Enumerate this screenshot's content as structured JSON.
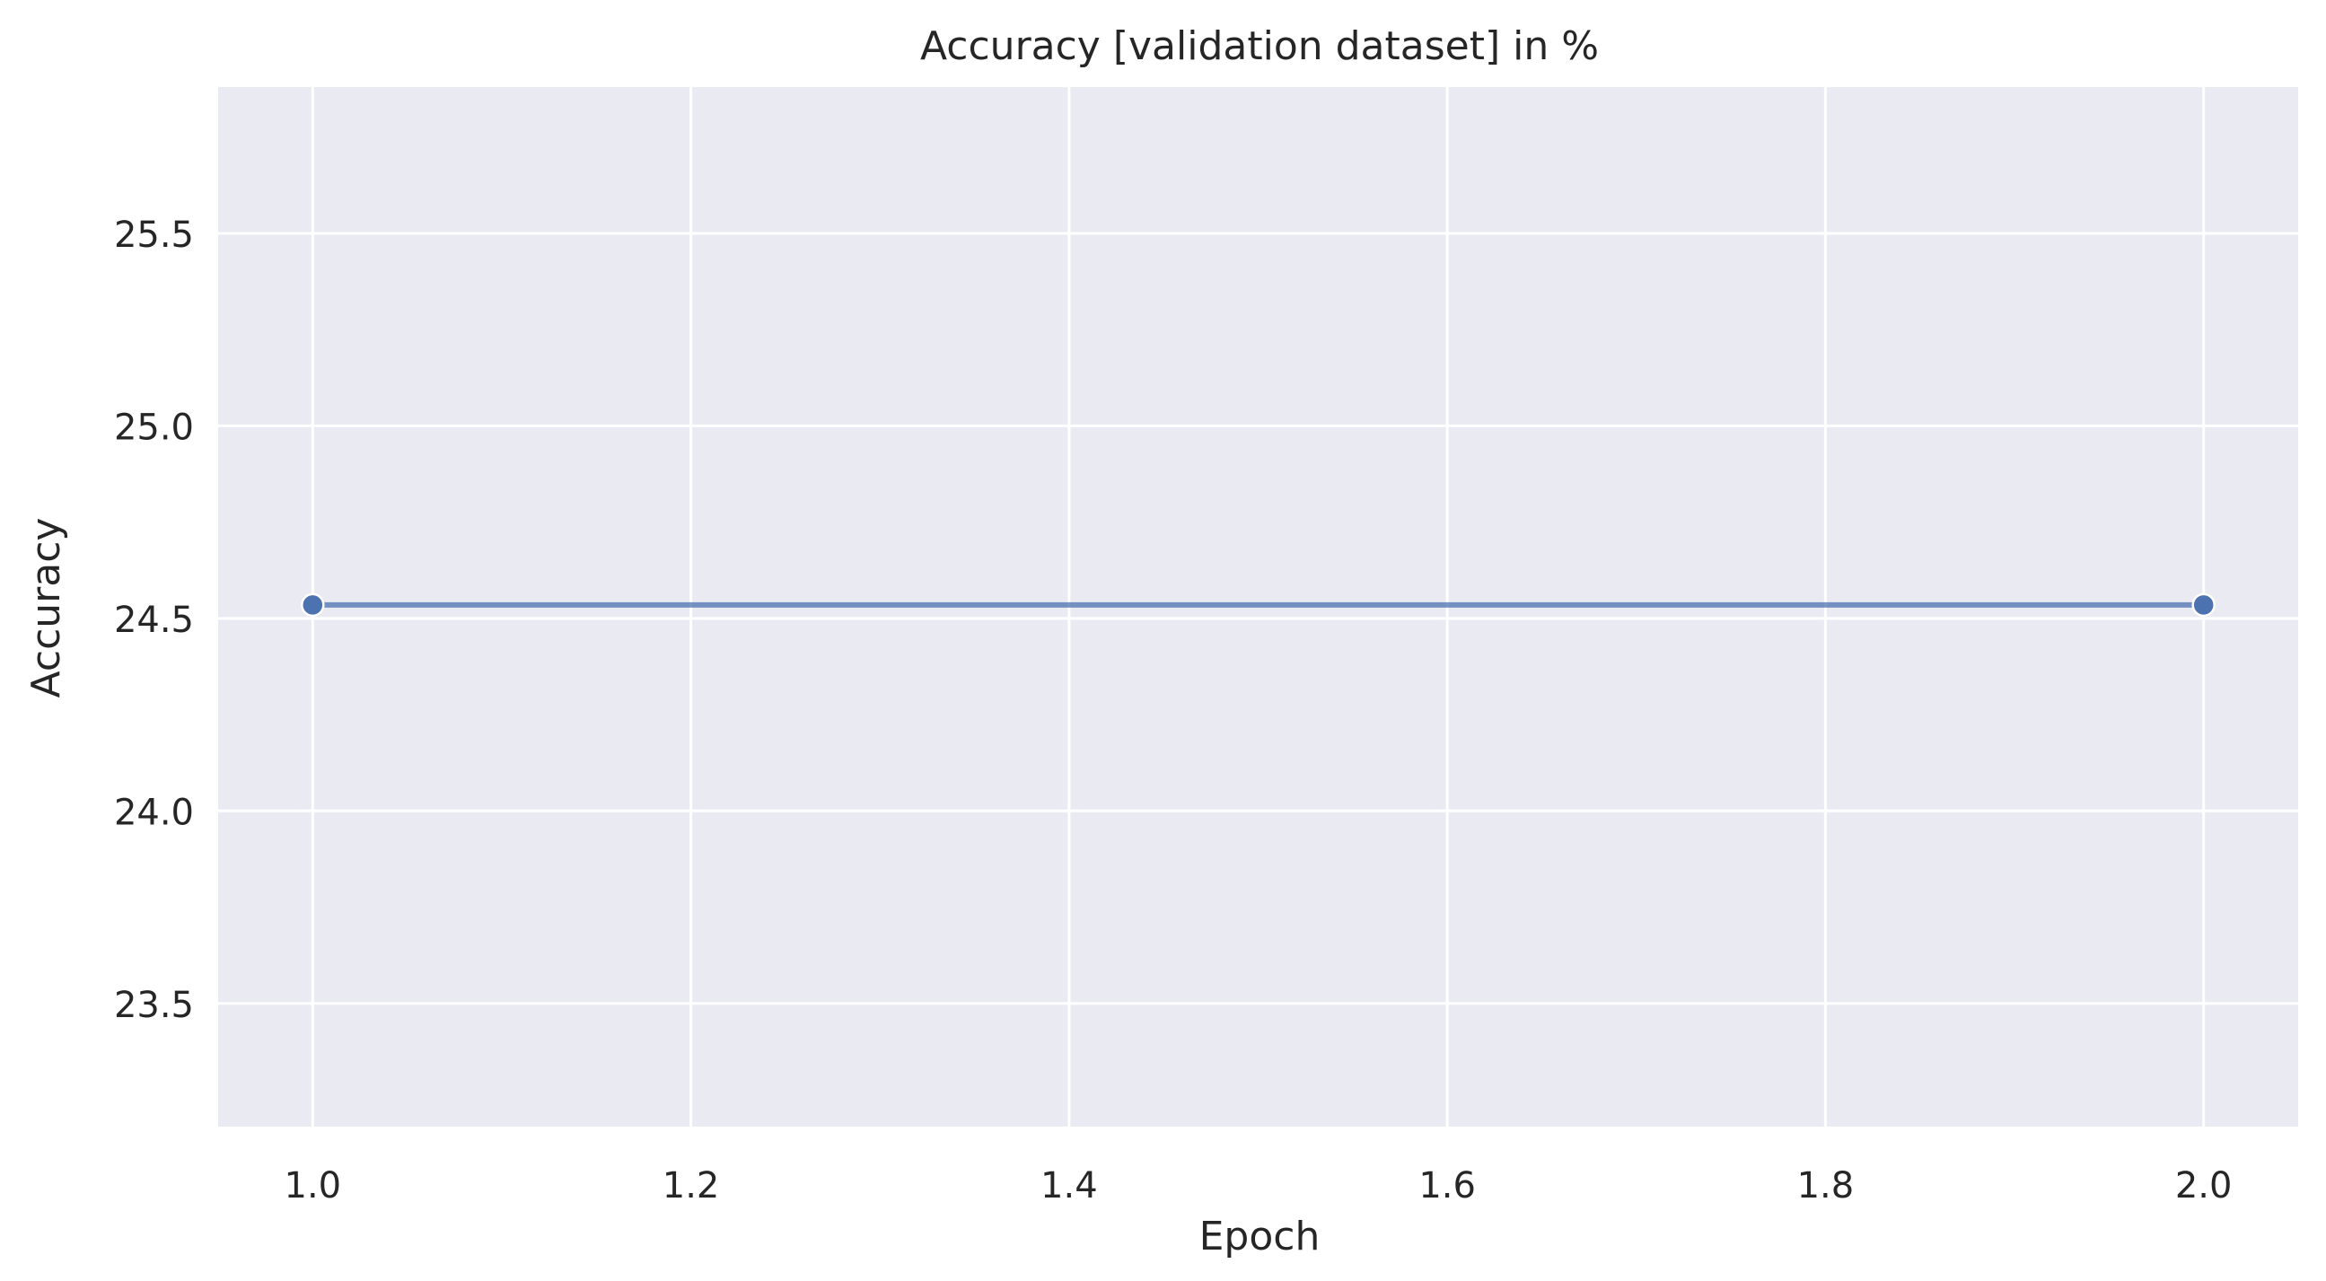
{
  "chart_data": {
    "type": "line",
    "title": "Accuracy [validation dataset] in %",
    "xlabel": "Epoch",
    "ylabel": "Accuracy",
    "xlim": [
      0.95,
      2.05
    ],
    "ylim": [
      23.18,
      25.88
    ],
    "x_ticks": [
      "1.0",
      "1.2",
      "1.4",
      "1.6",
      "1.8",
      "2.0"
    ],
    "y_ticks": [
      "23.5",
      "24.0",
      "24.5",
      "25.0",
      "25.5"
    ],
    "grid": true,
    "legend": "none",
    "series": [
      {
        "x": [
          1.0,
          2.0
        ],
        "y": [
          24.535,
          24.535
        ],
        "color": "#4c72b0"
      }
    ],
    "colors": {
      "plot_background": "#eaeaf2",
      "grid": "#ffffff",
      "line": "#4c72b0",
      "text": "#262626"
    }
  }
}
